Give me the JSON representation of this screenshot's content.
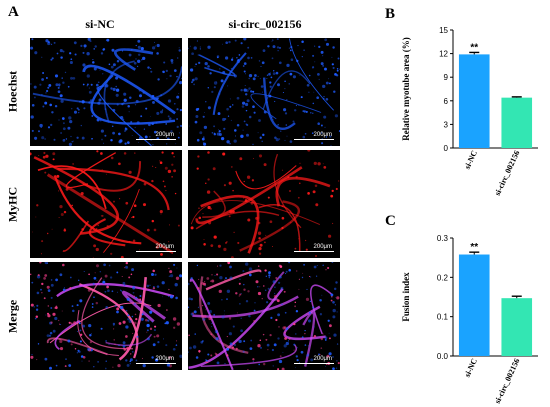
{
  "panel_a": {
    "letter": "A",
    "columns": [
      "si-NC",
      "si-circ_002156"
    ],
    "rows": [
      "Hoechst",
      "MyHC",
      "Merge"
    ],
    "scale_label": "200μm"
  },
  "colors": {
    "hoechst": "#1e5bff",
    "myhc": "#ff1a1a",
    "merge": "#d24cff",
    "bar_nc": "#1aa3ff",
    "bar_kd": "#33e6b3"
  },
  "chart_data": [
    {
      "letter": "B",
      "type": "bar",
      "ylabel": "Relative myotube area (%)",
      "categories": [
        "si-NC",
        "si-circ_002156"
      ],
      "values": [
        11.9,
        6.4
      ],
      "errors": [
        0.25,
        0.1
      ],
      "annotations": [
        "**",
        ""
      ],
      "ylim": [
        0,
        15
      ],
      "yticks": [
        0,
        3,
        6,
        9,
        12,
        15
      ],
      "ytick_labels": [
        "0",
        "3",
        "6",
        "9",
        "12",
        "15"
      ]
    },
    {
      "letter": "C",
      "type": "bar",
      "ylabel": "Fusion index",
      "categories": [
        "si-NC",
        "si-circ_002156"
      ],
      "values": [
        0.258,
        0.147
      ],
      "errors": [
        0.006,
        0.005
      ],
      "annotations": [
        "**",
        ""
      ],
      "ylim": [
        0,
        0.3
      ],
      "yticks": [
        0,
        0.1,
        0.2,
        0.3
      ],
      "ytick_labels": [
        "0.0",
        "0.1",
        "0.2",
        "0.3"
      ]
    }
  ]
}
